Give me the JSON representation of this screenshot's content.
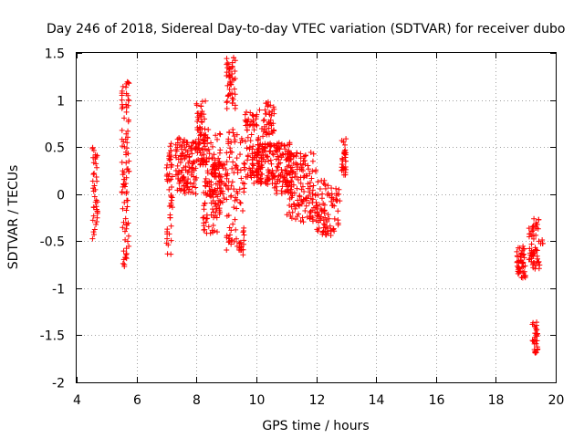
{
  "chart_data": {
    "type": "scatter",
    "title": "Day 246 of 2018, Sidereal Day-to-day VTEC variation (SDTVAR) for receiver dubo",
    "xlabel": "GPS time / hours",
    "ylabel": "SDTVAR / TECUs",
    "xlim": [
      4,
      20
    ],
    "ylim": [
      -2,
      1.5
    ],
    "xticks": [
      4,
      6,
      8,
      10,
      12,
      14,
      16,
      18,
      20
    ],
    "xtick_labels": [
      "4",
      "6",
      "8",
      "10",
      "12",
      "14",
      "16",
      "18",
      "20"
    ],
    "yticks": [
      -2,
      -1.5,
      -1,
      -0.5,
      0,
      0.5,
      1,
      1.5
    ],
    "ytick_labels": [
      "-2",
      "-1.5",
      "-1",
      "-0.5",
      "0",
      "0.5",
      "1",
      "1.5"
    ],
    "grid": true,
    "marker": "+",
    "color": "#ff0000",
    "clusters": [
      {
        "x": [
          4.5,
          4.7
        ],
        "y": [
          -0.5,
          0.5
        ],
        "n": 40
      },
      {
        "x": [
          5.5,
          5.75
        ],
        "y": [
          -0.8,
          1.2
        ],
        "n": 90
      },
      {
        "x": [
          7.0,
          7.2
        ],
        "y": [
          -0.65,
          0.55
        ],
        "n": 50
      },
      {
        "x": [
          7.3,
          8.0
        ],
        "y": [
          0.0,
          0.6
        ],
        "n": 120
      },
      {
        "x": [
          8.0,
          8.3
        ],
        "y": [
          0.3,
          1.02
        ],
        "n": 60
      },
      {
        "x": [
          8.2,
          8.8
        ],
        "y": [
          -0.45,
          0.7
        ],
        "n": 110
      },
      {
        "x": [
          8.3,
          9.0
        ],
        "y": [
          -0.1,
          0.35
        ],
        "n": 60
      },
      {
        "x": [
          9.0,
          9.3
        ],
        "y": [
          0.9,
          1.45
        ],
        "n": 50
      },
      {
        "x": [
          9.0,
          9.6
        ],
        "y": [
          -0.65,
          0.7
        ],
        "n": 100
      },
      {
        "x": [
          9.6,
          10.2
        ],
        "y": [
          0.1,
          0.9
        ],
        "n": 90
      },
      {
        "x": [
          10.2,
          10.6
        ],
        "y": [
          0.6,
          1.0
        ],
        "n": 40
      },
      {
        "x": [
          10.0,
          10.6
        ],
        "y": [
          0.1,
          0.55
        ],
        "n": 90
      },
      {
        "x": [
          10.6,
          11.2
        ],
        "y": [
          0.0,
          0.55
        ],
        "n": 90
      },
      {
        "x": [
          11.0,
          12.0
        ],
        "y": [
          -0.3,
          0.45
        ],
        "n": 140
      },
      {
        "x": [
          12.0,
          12.8
        ],
        "y": [
          -0.45,
          0.15
        ],
        "n": 90
      },
      {
        "x": [
          12.85,
          13.0
        ],
        "y": [
          0.2,
          0.6
        ],
        "n": 30
      },
      {
        "x": [
          18.7,
          19.0
        ],
        "y": [
          -0.9,
          -0.55
        ],
        "n": 50
      },
      {
        "x": [
          19.1,
          19.5
        ],
        "y": [
          -0.8,
          -0.25
        ],
        "n": 60
      },
      {
        "x": [
          19.2,
          19.4
        ],
        "y": [
          -1.7,
          -1.35
        ],
        "n": 30
      },
      {
        "x": [
          19.5,
          19.65
        ],
        "y": [
          -0.55,
          -0.45
        ],
        "n": 3
      }
    ]
  }
}
